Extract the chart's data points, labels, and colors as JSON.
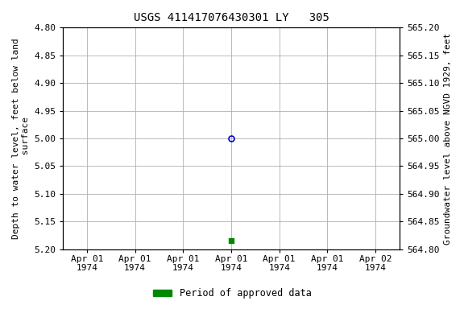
{
  "title": "USGS 411417076430301 LY   305",
  "ylabel_left": "Depth to water level, feet below land\n surface",
  "ylabel_right": "Groundwater level above NGVD 1929, feet",
  "ylim_left": [
    5.2,
    4.8
  ],
  "ylim_right": [
    564.8,
    565.2
  ],
  "yticks_left": [
    4.8,
    4.85,
    4.9,
    4.95,
    5.0,
    5.05,
    5.1,
    5.15,
    5.2
  ],
  "yticks_right": [
    565.2,
    565.15,
    565.1,
    565.05,
    565.0,
    564.95,
    564.9,
    564.85,
    564.8
  ],
  "point_open_x": 3.0,
  "point_open_y": 5.0,
  "point_filled_x": 3.0,
  "point_filled_y": 5.185,
  "open_marker_color": "#0000cc",
  "filled_marker_color": "#008800",
  "legend_label": "Period of approved data",
  "legend_color": "#008800",
  "background_color": "#ffffff",
  "grid_color": "#b0b0b0",
  "title_fontsize": 10,
  "axis_fontsize": 8,
  "tick_fontsize": 8,
  "xtick_positions": [
    0,
    1,
    2,
    3,
    4,
    5,
    6
  ],
  "xtick_labels": [
    "Apr 01\n1974",
    "Apr 01\n1974",
    "Apr 01\n1974",
    "Apr 01\n1974",
    "Apr 01\n1974",
    "Apr 01\n1974",
    "Apr 02\n1974"
  ],
  "xlim": [
    -0.5,
    6.5
  ]
}
